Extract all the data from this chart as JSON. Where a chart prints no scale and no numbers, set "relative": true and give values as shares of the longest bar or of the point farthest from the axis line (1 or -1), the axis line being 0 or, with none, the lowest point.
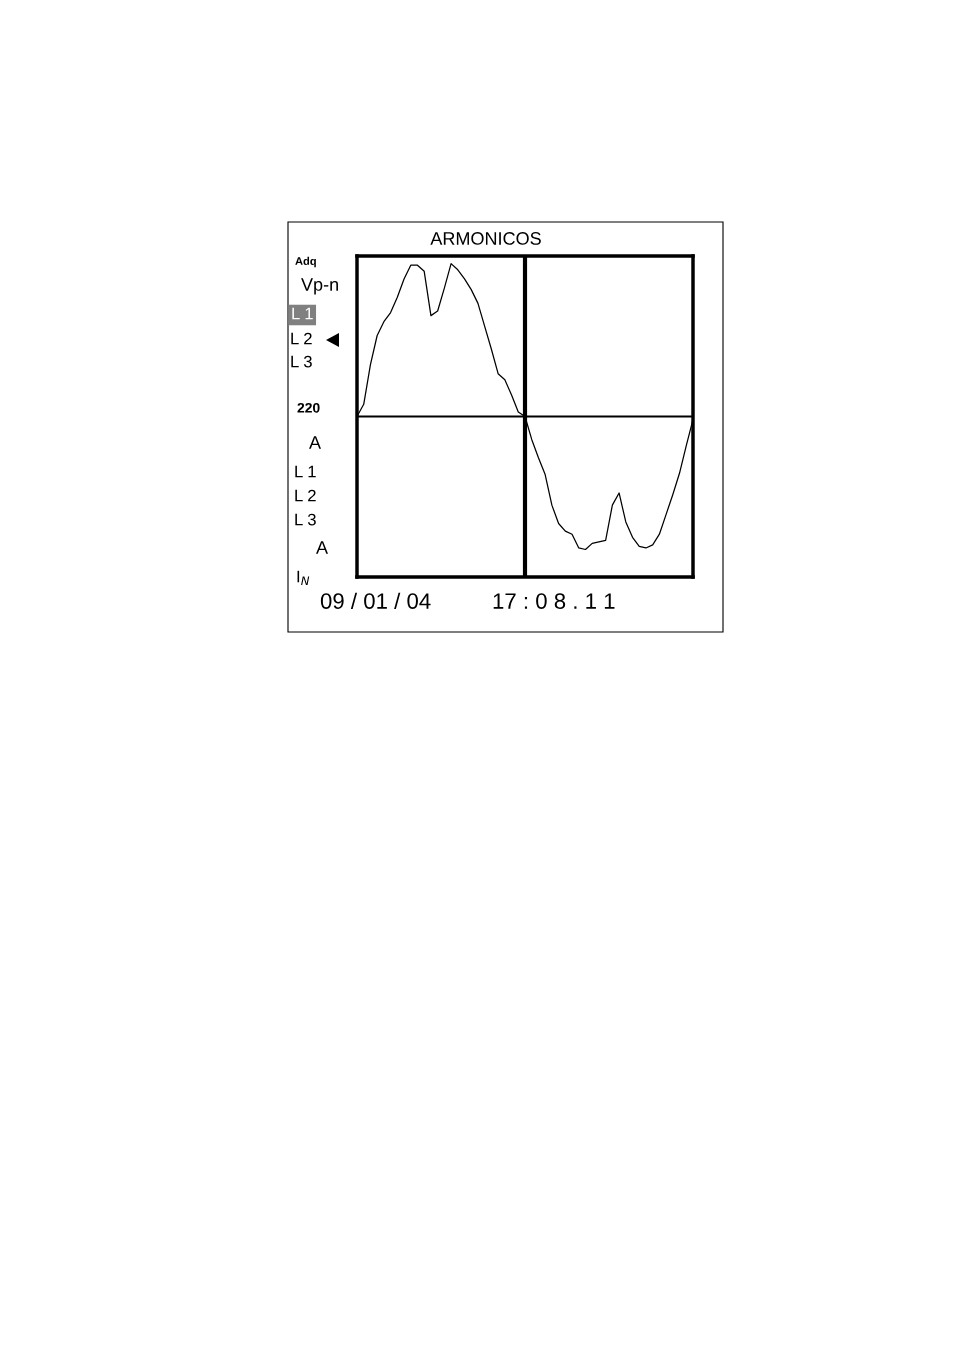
{
  "chart_data": {
    "type": "line",
    "title": "ARMONICOS",
    "relative": true,
    "color": "#000000",
    "categories": [
      null,
      null,
      null,
      null,
      null,
      null,
      null,
      null,
      null,
      null,
      null,
      null,
      null,
      null,
      null,
      null,
      null,
      null,
      null,
      null,
      null,
      null,
      null,
      null,
      null,
      null,
      null,
      null,
      null,
      null,
      null,
      null,
      null,
      null,
      null,
      null,
      null,
      null,
      null,
      null,
      null,
      null,
      null,
      null,
      null,
      null,
      null,
      null,
      null,
      null,
      null
    ],
    "values": [
      0,
      0.08,
      0.34,
      0.53,
      0.62,
      0.68,
      0.78,
      0.9,
      0.99,
      0.99,
      0.95,
      0.66,
      0.69,
      0.84,
      1.0,
      0.96,
      0.9,
      0.83,
      0.74,
      0.59,
      0.44,
      0.28,
      0.24,
      0.14,
      0.03,
      0,
      -0.15,
      -0.27,
      -0.38,
      -0.58,
      -0.7,
      -0.75,
      -0.77,
      -0.86,
      -0.87,
      -0.83,
      -0.82,
      -0.81,
      -0.58,
      -0.5,
      -0.69,
      -0.79,
      -0.85,
      -0.86,
      -0.84,
      -0.77,
      -0.64,
      -0.51,
      -0.37,
      -0.19,
      -0.02
    ],
    "annotations": [
      "Adq",
      "Vp-n",
      "L 1",
      "L 2",
      "L 3",
      "220",
      "A",
      "L 1",
      "L 2",
      "L 3",
      "A",
      "I$_{N}$",
      "09 / 01 / 04",
      "17 : 0 8 . 1 1"
    ]
  }
}
